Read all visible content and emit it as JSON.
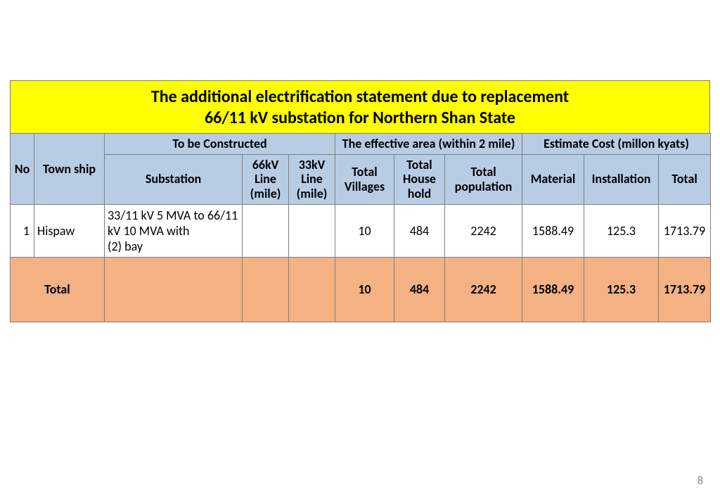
{
  "title_line1": "The additional electrification statement due to replacement",
  "title_line2": "66/11 kV substation for Northern Shan State",
  "headers": {
    "no": "No",
    "township": "Town ship",
    "to_be_constructed": "To be Constructed",
    "effective_area": "The effective area (within 2 mile)",
    "estimate_cost": "Estimate Cost (millon kyats)",
    "substation": "Substation",
    "line66": "66kV Line (mile)",
    "line33": "33kV Line (mile)",
    "villages": "Total Villages",
    "household": "Total House hold",
    "population": "Total population",
    "material": "Material",
    "installation": "Installation",
    "total": "Total"
  },
  "row": {
    "no": "1",
    "township": "Hispaw",
    "substation": "33/11 kV 5 MVA  to 66/11 kV 10 MVA with\n (2) bay",
    "line66": "",
    "line33": "",
    "villages": "10",
    "household": "484",
    "population": "2242",
    "material": "1588.49",
    "installation": "125.3",
    "total": "1713.79"
  },
  "totals": {
    "label": "Total",
    "villages": "10",
    "household": "484",
    "population": "2242",
    "material": "1588.49",
    "installation": "125.3",
    "total": "1713.79"
  },
  "page_number": "8",
  "colors": {
    "title_bg": "#ffff00",
    "header_bg": "#b8cce4",
    "total_bg": "#f4b183",
    "border": "#7f7f7f",
    "page_num": "#888888"
  }
}
